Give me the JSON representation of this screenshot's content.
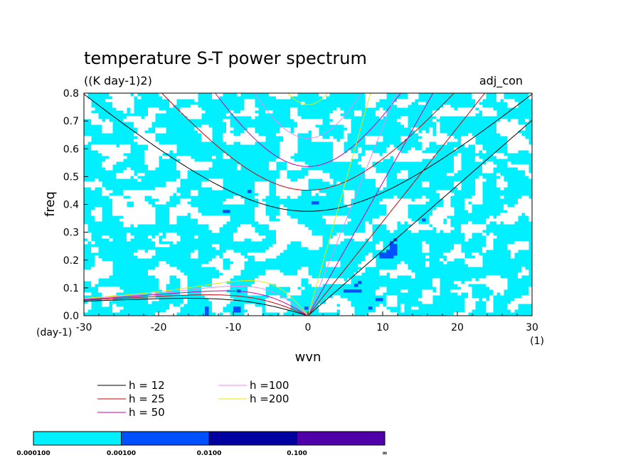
{
  "chart_data": {
    "type": "heatmap",
    "title": "temperature S-T power spectrum",
    "subtitle": "((K day-1)2)",
    "annotation": "adj_con",
    "xlabel": "wvn",
    "ylabel": "freq",
    "x_units": "(1)",
    "y_units": "(day-1)",
    "xlim": [
      -30,
      30
    ],
    "ylim": [
      0,
      0.8
    ],
    "x_ticks": [
      -30,
      -20,
      -10,
      0,
      10,
      20,
      30
    ],
    "x_tick_labels": [
      "-30",
      "-20",
      "-10",
      "0",
      "10",
      "20",
      "30"
    ],
    "y_ticks": [
      0.0,
      0.1,
      0.2,
      0.3,
      0.4,
      0.5,
      0.6,
      0.7,
      0.8
    ],
    "y_tick_labels": [
      "0.0",
      "0.1",
      "0.2",
      "0.3",
      "0.4",
      "0.5",
      "0.6",
      "0.7",
      "0.8"
    ],
    "fill_levels": [
      0.0001,
      0.001,
      0.01,
      0.1
    ],
    "fill_level_labels": [
      "0.000100",
      "0.00100",
      "0.0100",
      "0.100",
      "∞"
    ],
    "fill_colors": [
      "#00f0ff",
      "#0050ff",
      "#0000a0",
      "#5000a8"
    ],
    "background_color": "#ffffff",
    "dispersion_curves": [
      {
        "name": "h = 12",
        "h": 12,
        "color": "#000000"
      },
      {
        "name": "h = 25",
        "h": 25,
        "color": "#cc0000"
      },
      {
        "name": "h = 50",
        "h": 50,
        "color": "#cc00aa"
      },
      {
        "name": "h =100",
        "h": 100,
        "color": "#ee88ee"
      },
      {
        "name": "h =200",
        "h": 200,
        "color": "#e8e800"
      }
    ],
    "grid": false,
    "legend_position": "bottom-left",
    "colorbar_position": "bottom"
  }
}
